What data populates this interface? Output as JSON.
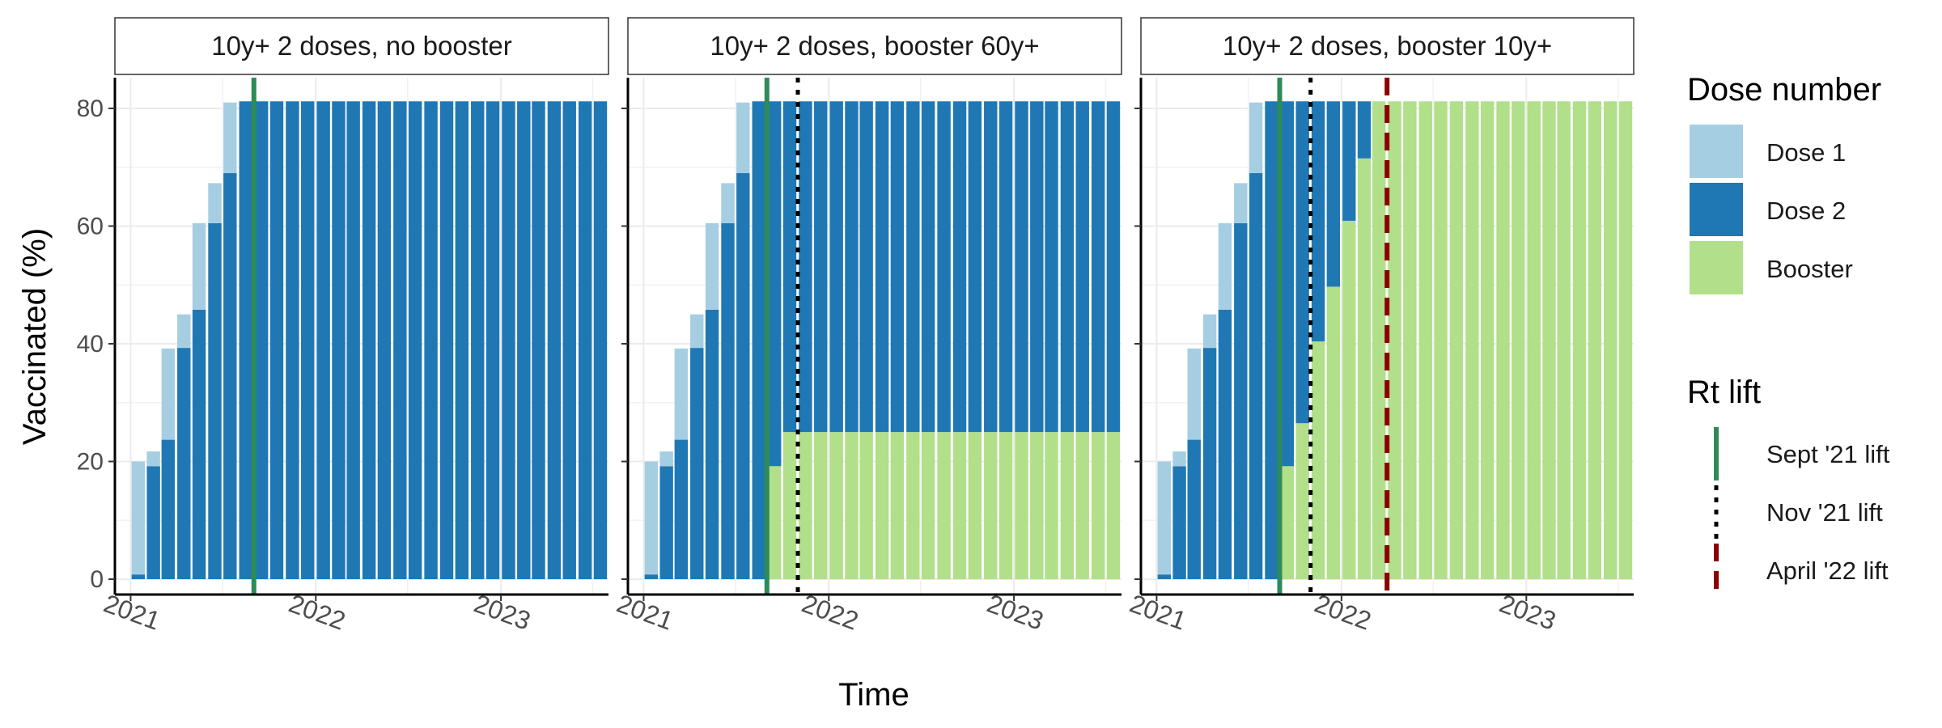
{
  "chart_data": {
    "type": "bar",
    "stacked": true,
    "ylabel": "Vaccinated (%)",
    "xlabel": "Time",
    "ylim": [
      0,
      85
    ],
    "yticks": [
      0,
      20,
      40,
      60,
      80
    ],
    "xticks": [
      "2021",
      "2022",
      "2023"
    ],
    "x_range": [
      "2020-12-01",
      "2023-08-01"
    ],
    "grid": true,
    "legend": {
      "placement": "right",
      "dose_title": "Dose number",
      "dose_entries": [
        {
          "label": "Dose 1",
          "color": "#a6cee3"
        },
        {
          "label": "Dose 2",
          "color": "#1f78b4"
        },
        {
          "label": "Booster",
          "color": "#b2df8a"
        }
      ],
      "lift_title": "Rt lift",
      "lift_entries": [
        {
          "label": "Sept '21 lift",
          "color": "#2e8b57",
          "style": "solid"
        },
        {
          "label": "Nov '21 lift",
          "color": "#000000",
          "style": "dotted"
        },
        {
          "label": "April '22 lift",
          "color": "#8b0000",
          "style": "dashed"
        }
      ]
    },
    "colors": {
      "dose1": "#a6cee3",
      "dose2": "#1f78b4",
      "booster": "#b2df8a"
    },
    "lift_lines": [
      {
        "name": "Sept '21 lift",
        "date": "2021-09-01"
      },
      {
        "name": "Nov '21 lift",
        "date": "2021-11-01"
      },
      {
        "name": "April '22 lift",
        "date": "2022-04-01"
      }
    ],
    "periods": [
      "2021-01",
      "2021-02",
      "2021-03",
      "2021-04",
      "2021-05",
      "2021-06",
      "2021-07",
      "2021-08",
      "2021-09",
      "2021-10",
      "2021-11",
      "2021-12",
      "2022-01",
      "2022-02",
      "2022-03",
      "2022-04",
      "2022-05",
      "2022-06",
      "2022-07",
      "2022-08",
      "2022-09",
      "2022-10",
      "2022-11",
      "2022-12",
      "2023-01",
      "2023-02",
      "2023-03",
      "2023-04",
      "2023-05",
      "2023-06",
      "2023-07"
    ],
    "panels": [
      {
        "title": "10y+ 2 doses, no booster",
        "lifts": [
          "Sept '21 lift"
        ],
        "series": [
          {
            "name": "Dose 1",
            "values": [
              19.2,
              2.5,
              15.5,
              5.7,
              14.7,
              6.8,
              12.0,
              0,
              0,
              0,
              0,
              0,
              0,
              0,
              0,
              0,
              0,
              0,
              0,
              0,
              0,
              0,
              0,
              0,
              0,
              0,
              0,
              0,
              0,
              0,
              0
            ]
          },
          {
            "name": "Dose 2",
            "values": [
              0.8,
              19.2,
              23.7,
              39.3,
              45.8,
              60.5,
              69.0,
              81.2,
              81.2,
              81.2,
              81.2,
              81.2,
              81.2,
              81.2,
              81.2,
              81.2,
              81.2,
              81.2,
              81.2,
              81.2,
              81.2,
              81.2,
              81.2,
              81.2,
              81.2,
              81.2,
              81.2,
              81.2,
              81.2,
              81.2,
              81.2
            ]
          },
          {
            "name": "Booster",
            "values": [
              0,
              0,
              0,
              0,
              0,
              0,
              0,
              0,
              0,
              0,
              0,
              0,
              0,
              0,
              0,
              0,
              0,
              0,
              0,
              0,
              0,
              0,
              0,
              0,
              0,
              0,
              0,
              0,
              0,
              0,
              0
            ]
          }
        ]
      },
      {
        "title": "10y+ 2 doses, booster 60y+",
        "lifts": [
          "Sept '21 lift",
          "Nov '21 lift"
        ],
        "series": [
          {
            "name": "Dose 1",
            "values": [
              19.2,
              2.5,
              15.5,
              5.7,
              14.7,
              6.8,
              12.0,
              0,
              0,
              0,
              0,
              0,
              0,
              0,
              0,
              0,
              0,
              0,
              0,
              0,
              0,
              0,
              0,
              0,
              0,
              0,
              0,
              0,
              0,
              0,
              0
            ]
          },
          {
            "name": "Dose 2",
            "values": [
              0.8,
              19.2,
              23.7,
              39.3,
              45.8,
              60.5,
              69.0,
              81.2,
              62.0,
              56.2,
              56.2,
              56.2,
              56.2,
              56.2,
              56.2,
              56.2,
              56.2,
              56.2,
              56.2,
              56.2,
              56.2,
              56.2,
              56.2,
              56.2,
              56.2,
              56.2,
              56.2,
              56.2,
              56.2,
              56.2,
              56.2
            ]
          },
          {
            "name": "Booster",
            "values": [
              0,
              0,
              0,
              0,
              0,
              0,
              0,
              0,
              19.2,
              25.0,
              25.0,
              25.0,
              25.0,
              25.0,
              25.0,
              25.0,
              25.0,
              25.0,
              25.0,
              25.0,
              25.0,
              25.0,
              25.0,
              25.0,
              25.0,
              25.0,
              25.0,
              25.0,
              25.0,
              25.0,
              25.0
            ]
          }
        ]
      },
      {
        "title": "10y+ 2 doses, booster 10y+",
        "lifts": [
          "Sept '21 lift",
          "Nov '21 lift",
          "April '22 lift"
        ],
        "series": [
          {
            "name": "Dose 1",
            "values": [
              19.2,
              2.5,
              15.5,
              5.7,
              14.7,
              6.8,
              12.0,
              0,
              0,
              0,
              0,
              0,
              0,
              0,
              0,
              0,
              0,
              0,
              0,
              0,
              0,
              0,
              0,
              0,
              0,
              0,
              0,
              0,
              0,
              0,
              0
            ]
          },
          {
            "name": "Dose 2",
            "values": [
              0.8,
              19.2,
              23.7,
              39.3,
              45.8,
              60.5,
              69.0,
              81.2,
              62.0,
              54.7,
              40.8,
              31.5,
              20.3,
              9.7,
              0,
              0,
              0,
              0,
              0,
              0,
              0,
              0,
              0,
              0,
              0,
              0,
              0,
              0,
              0,
              0,
              0
            ]
          },
          {
            "name": "Booster",
            "values": [
              0,
              0,
              0,
              0,
              0,
              0,
              0,
              0,
              19.2,
              26.5,
              40.4,
              49.7,
              60.9,
              71.5,
              81.2,
              81.2,
              81.2,
              81.2,
              81.2,
              81.2,
              81.2,
              81.2,
              81.2,
              81.2,
              81.2,
              81.2,
              81.2,
              81.2,
              81.2,
              81.2,
              81.2
            ]
          }
        ]
      }
    ]
  }
}
